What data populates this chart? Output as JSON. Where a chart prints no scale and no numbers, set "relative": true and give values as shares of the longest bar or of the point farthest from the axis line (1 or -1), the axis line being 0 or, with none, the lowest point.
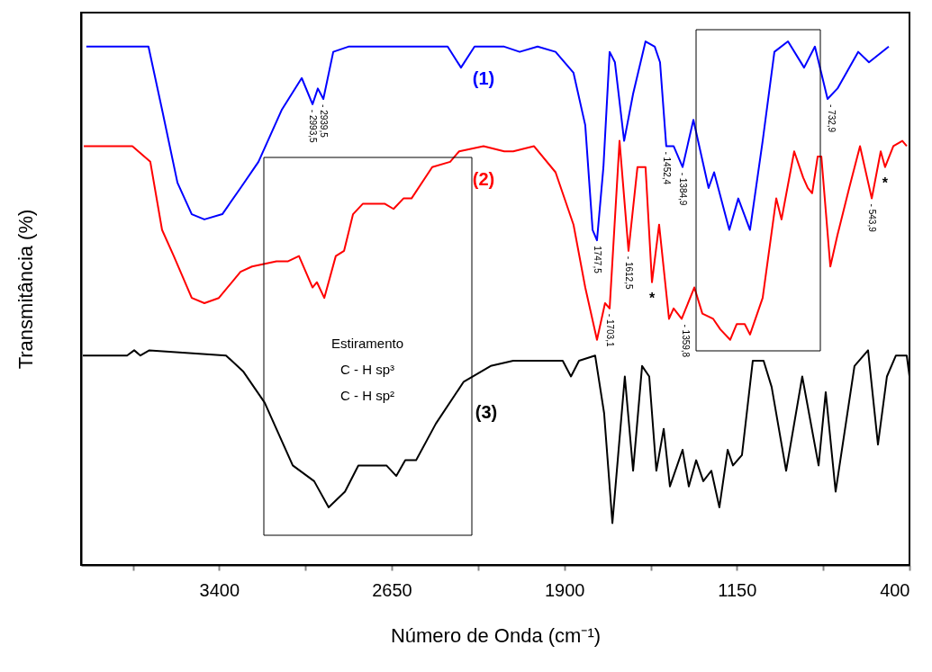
{
  "chart_data": {
    "type": "line",
    "relative": true,
    "xlabel": "Número de Onda (cm⁻¹)",
    "ylabel": "Transmitância (%)",
    "xlim": [
      4000,
      400
    ],
    "xticks": [
      {
        "value": 3775,
        "label": null
      },
      3400,
      {
        "value": 3025,
        "label": null
      },
      2650,
      {
        "value": 2275,
        "label": null
      },
      1900,
      {
        "value": 1525,
        "label": null
      },
      1150,
      {
        "value": 775,
        "label": null
      },
      400
    ],
    "grid": false,
    "line_style": "solid",
    "marker": "none",
    "series": [
      {
        "name": "(1)",
        "color": "#0000ff",
        "x": [
          3977,
          3707,
          3648,
          3581,
          3519,
          3464,
          3386,
          3307,
          3229,
          3127,
          3041,
          2994,
          2971,
          2947,
          2904,
          2838,
          2736,
          2407,
          2349,
          2290,
          2161,
          2094,
          2016,
          1938,
          1860,
          1809,
          1777,
          1758,
          1730,
          1703,
          1680,
          1640,
          1601,
          1547,
          1507,
          1484,
          1457,
          1425,
          1386,
          1339,
          1273,
          1249,
          1183,
          1144,
          1093,
          1038,
          987,
          928,
          858,
          811,
          756,
          713,
          623,
          576,
          490
        ],
        "values": [
          0.99,
          0.99,
          0.87,
          0.73,
          0.67,
          0.66,
          0.67,
          0.72,
          0.77,
          0.87,
          0.93,
          0.88,
          0.91,
          0.89,
          0.98,
          0.99,
          0.99,
          0.99,
          0.95,
          0.99,
          0.99,
          0.98,
          0.99,
          0.98,
          0.94,
          0.84,
          0.64,
          0.62,
          0.76,
          0.98,
          0.96,
          0.81,
          0.9,
          1.0,
          0.99,
          0.96,
          0.8,
          0.8,
          0.76,
          0.85,
          0.72,
          0.75,
          0.64,
          0.7,
          0.64,
          0.81,
          0.98,
          1.0,
          0.95,
          0.99,
          0.89,
          0.91,
          0.98,
          0.96,
          0.99
        ]
      },
      {
        "name": "(2)",
        "color": "#ff0000",
        "x": [
          3988,
          3910,
          3777,
          3699,
          3648,
          3597,
          3519,
          3464,
          3401,
          3307,
          3257,
          3151,
          3100,
          3053,
          2994,
          2975,
          2943,
          2893,
          2857,
          2818,
          2775,
          2681,
          2642,
          2599,
          2564,
          2474,
          2396,
          2357,
          2251,
          2161,
          2122,
          2032,
          1938,
          1860,
          1809,
          1758,
          1723,
          1703,
          1660,
          1621,
          1582,
          1547,
          1519,
          1488,
          1445,
          1425,
          1390,
          1335,
          1300,
          1253,
          1222,
          1179,
          1151,
          1116,
          1093,
          1038,
          979,
          956,
          901,
          862,
          842,
          823,
          799,
          783,
          744,
          713,
          662,
          615,
          564,
          525,
          506,
          470,
          431,
          412
        ],
        "values": [
          0.8,
          0.8,
          0.8,
          0.77,
          0.64,
          0.59,
          0.51,
          0.5,
          0.51,
          0.56,
          0.57,
          0.58,
          0.58,
          0.59,
          0.53,
          0.54,
          0.51,
          0.59,
          0.6,
          0.67,
          0.69,
          0.69,
          0.68,
          0.7,
          0.7,
          0.76,
          0.77,
          0.79,
          0.8,
          0.79,
          0.79,
          0.8,
          0.75,
          0.65,
          0.53,
          0.43,
          0.5,
          0.49,
          0.81,
          0.6,
          0.76,
          0.76,
          0.54,
          0.65,
          0.47,
          0.49,
          0.47,
          0.53,
          0.48,
          0.47,
          0.45,
          0.43,
          0.46,
          0.46,
          0.44,
          0.51,
          0.7,
          0.66,
          0.79,
          0.74,
          0.72,
          0.71,
          0.78,
          0.78,
          0.57,
          0.63,
          0.72,
          0.8,
          0.7,
          0.79,
          0.76,
          0.8,
          0.81,
          0.8
        ]
      },
      {
        "name": "(3)",
        "color": "#000000",
        "x": [
          3992,
          3800,
          3769,
          3742,
          3703,
          3370,
          3296,
          3202,
          3080,
          2987,
          2924,
          2853,
          2795,
          2673,
          2630,
          2591,
          2544,
          2458,
          2337,
          2220,
          2122,
          1907,
          1871,
          1836,
          1766,
          1727,
          1691,
          1637,
          1601,
          1562,
          1531,
          1500,
          1468,
          1441,
          1386,
          1359,
          1327,
          1296,
          1261,
          1226,
          1190,
          1167,
          1128,
          1081,
          1034,
          999,
          936,
          866,
          795,
          764,
          721,
          639,
          580,
          537,
          498,
          459,
          412,
          400
        ],
        "values": [
          0.4,
          0.4,
          0.41,
          0.4,
          0.41,
          0.4,
          0.37,
          0.31,
          0.19,
          0.16,
          0.11,
          0.14,
          0.19,
          0.19,
          0.17,
          0.2,
          0.2,
          0.27,
          0.35,
          0.38,
          0.39,
          0.39,
          0.36,
          0.39,
          0.4,
          0.29,
          0.08,
          0.36,
          0.18,
          0.38,
          0.36,
          0.18,
          0.26,
          0.15,
          0.22,
          0.15,
          0.2,
          0.16,
          0.18,
          0.11,
          0.22,
          0.19,
          0.21,
          0.39,
          0.39,
          0.34,
          0.18,
          0.36,
          0.19,
          0.33,
          0.14,
          0.38,
          0.41,
          0.23,
          0.36,
          0.4,
          0.4,
          0.36
        ]
      }
    ],
    "annotations": [
      {
        "text": "- 2993,5",
        "x": 2994,
        "y": 0.88
      },
      {
        "text": "- 2939,5",
        "x": 2947,
        "y": 0.89
      },
      {
        "text": "1747,5",
        "x": 1758,
        "y": 0.62
      },
      {
        "text": "- 1612,5",
        "x": 1621,
        "y": 0.6
      },
      {
        "text": "- 1452,4",
        "x": 1457,
        "y": 0.8
      },
      {
        "text": "- 1384,9",
        "x": 1386,
        "y": 0.76
      },
      {
        "text": "- 732,9",
        "x": 740,
        "y": 0.89
      },
      {
        "text": "- 1703,1",
        "x": 1703,
        "y": 0.49
      },
      {
        "text": "- 1359,8",
        "x": 1375,
        "y": 0.47
      },
      {
        "text": "- 543,9",
        "x": 564,
        "y": 0.7
      },
      {
        "text": "*",
        "x": 1519,
        "y": 0.54
      },
      {
        "text": "*",
        "x": 506,
        "y": 0.76
      },
      "Estiramento",
      "C - H sp³",
      "C - H sp²"
    ]
  }
}
